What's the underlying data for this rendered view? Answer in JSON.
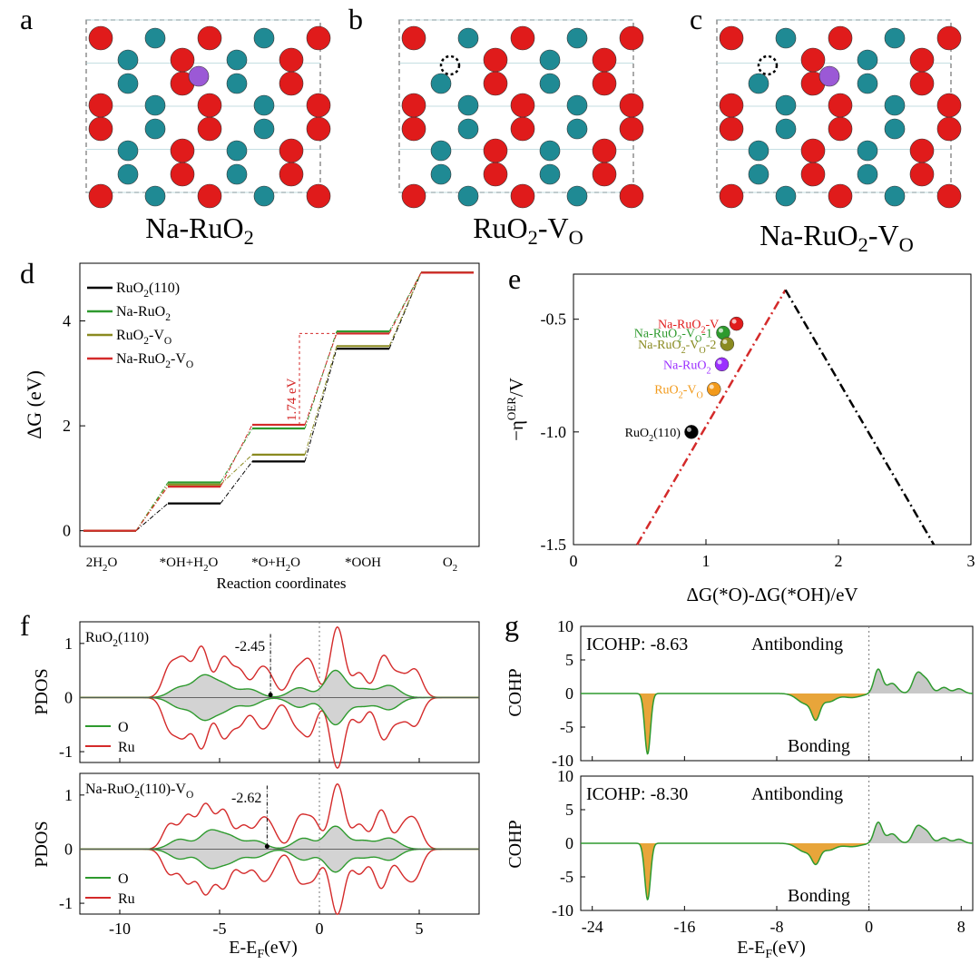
{
  "colors": {
    "ru_atom": "#1f8a94",
    "o_atom": "#e01b1b",
    "na_atom": "#9b59d6",
    "black_series": "#000000",
    "green_series": "#2e9a2e",
    "olive_series": "#8a8a20",
    "red_series": "#d42a2a",
    "orange_point": "#f29a1b",
    "purple_point": "#9b30ff",
    "gray_fill": "#c8c8c8",
    "bonding_fill": "#e8a53a"
  },
  "panel_letters": {
    "a": "a",
    "b": "b",
    "c": "c",
    "d": "d",
    "e": "e",
    "f": "f",
    "g": "g"
  },
  "structures": {
    "a": {
      "name": "Na-RuO",
      "sub": "2",
      "suffix": "",
      "suffix_sub": ""
    },
    "b": {
      "name": "RuO",
      "sub": "2",
      "suffix": "-V",
      "suffix_sub": "O"
    },
    "c": {
      "name": "Na-RuO",
      "sub": "2",
      "suffix": "-V",
      "suffix_sub": "O"
    }
  },
  "chart_data": [
    {
      "panel": "d",
      "type": "line",
      "title": "",
      "xlabel": "Reaction coordinates",
      "ylabel": "ΔG (eV)",
      "ylim": [
        -0.3,
        5.1
      ],
      "yticks": [
        0,
        2,
        4
      ],
      "categories": [
        {
          "label": "2H",
          "sub": "2",
          "tail": "O"
        },
        {
          "label": "*OH+H",
          "sub": "2",
          "tail": "O"
        },
        {
          "label": "*O+H",
          "sub": "2",
          "tail": "O"
        },
        {
          "label": "*OOH",
          "sub": "",
          "tail": ""
        },
        {
          "label": "O",
          "sub": "2",
          "tail": ""
        }
      ],
      "series": [
        {
          "name": "RuO",
          "sub": "2",
          "tail": "(110)",
          "values": [
            0,
            0.52,
            1.32,
            3.47,
            4.92
          ]
        },
        {
          "name": "Na-RuO",
          "sub": "2",
          "tail": "",
          "values": [
            0,
            0.92,
            1.95,
            3.8,
            4.92
          ]
        },
        {
          "name": "RuO",
          "sub": "2",
          "tail": "-V",
          "sub2": "O",
          "values": [
            0,
            0.88,
            1.45,
            3.52,
            4.92
          ]
        },
        {
          "name": "Na-RuO",
          "sub": "2",
          "tail": "-V",
          "sub2": "O",
          "values": [
            0,
            0.84,
            2.02,
            3.76,
            4.92
          ]
        }
      ],
      "annotation": {
        "text": "1.74 eV"
      }
    },
    {
      "panel": "e",
      "type": "scatter",
      "xlabel": "ΔG(*O)-ΔG(*OH)/eV",
      "ylabel": "−η",
      "ylabel_sup": "OER",
      "ylabel_tail": "/V",
      "xlim": [
        0,
        3
      ],
      "ylim": [
        -1.5,
        -0.3
      ],
      "xticks": [
        0,
        1,
        2,
        3
      ],
      "yticks": [
        -1.5,
        -1.0,
        -0.5
      ],
      "volcano_apex": [
        1.6,
        -0.37
      ],
      "points": [
        {
          "label": "Na-RuO",
          "sub": "2",
          "tail": "-V",
          "sub2": "O",
          "tail2": "",
          "x": 1.23,
          "y": -0.52,
          "color": "#e01b1b"
        },
        {
          "label": "Na-RuO",
          "sub": "2",
          "tail": "-V",
          "sub2": "O",
          "tail2": "-1",
          "x": 1.13,
          "y": -0.56,
          "color": "#2e9a2e"
        },
        {
          "label": "Na-RuO",
          "sub": "2",
          "tail": "-V",
          "sub2": "O",
          "tail2": "-2",
          "x": 1.16,
          "y": -0.61,
          "color": "#8a8a20"
        },
        {
          "label": "Na-RuO",
          "sub": "2",
          "tail": "",
          "sub2": "",
          "tail2": "",
          "x": 1.12,
          "y": -0.7,
          "color": "#9b30ff"
        },
        {
          "label": "RuO",
          "sub": "2",
          "tail": "-V",
          "sub2": "O",
          "tail2": "",
          "x": 1.06,
          "y": -0.81,
          "color": "#f29a1b"
        },
        {
          "label": "RuO",
          "sub": "2",
          "tail": "(110)",
          "sub2": "",
          "tail2": "",
          "x": 0.89,
          "y": -1.0,
          "color": "#000000"
        }
      ]
    },
    {
      "panel": "f",
      "type": "line",
      "xlabel": "E-E",
      "xlabel_sub": "F",
      "xlabel_tail": "(eV)",
      "ylabel": "PDOS",
      "xlim": [
        -12,
        8
      ],
      "ylim": [
        -1.2,
        1.4
      ],
      "xticks": [
        -10,
        -5,
        0,
        5
      ],
      "yticks": [
        -1,
        0,
        1
      ],
      "legend": [
        "O",
        "Ru"
      ],
      "plots": [
        {
          "title": "RuO",
          "sub": "2",
          "tail": "(110)",
          "tail_sub": "",
          "dband": "-2.45",
          "dband_x": -2.45,
          "ru_peaks": [
            [
              -7.5,
              0.55
            ],
            [
              -6.8,
              0.65
            ],
            [
              -5.9,
              0.92
            ],
            [
              -4.8,
              0.72
            ],
            [
              -4.0,
              0.48
            ],
            [
              -3.0,
              0.42
            ],
            [
              -2.5,
              0.32
            ],
            [
              -1.2,
              0.45
            ],
            [
              -0.5,
              0.65
            ],
            [
              0.9,
              1.3
            ],
            [
              2.0,
              0.45
            ],
            [
              3.2,
              0.75
            ],
            [
              4.0,
              0.38
            ],
            [
              4.8,
              0.5
            ]
          ],
          "o_peaks": [
            [
              -7.0,
              0.18
            ],
            [
              -5.8,
              0.38
            ],
            [
              -4.8,
              0.22
            ],
            [
              -3.5,
              0.15
            ],
            [
              -1.0,
              0.18
            ],
            [
              0.8,
              0.5
            ],
            [
              2.2,
              0.15
            ],
            [
              3.5,
              0.22
            ]
          ]
        },
        {
          "title": "Na-RuO",
          "sub": "2",
          "tail": "(110)-V",
          "tail_sub": "O",
          "dband": "-2.62",
          "dband_x": -2.62,
          "ru_peaks": [
            [
              -7.5,
              0.45
            ],
            [
              -6.6,
              0.6
            ],
            [
              -5.7,
              0.8
            ],
            [
              -4.8,
              0.7
            ],
            [
              -3.8,
              0.42
            ],
            [
              -2.9,
              0.45
            ],
            [
              -2.4,
              0.3
            ],
            [
              -1.0,
              0.55
            ],
            [
              -0.3,
              0.5
            ],
            [
              0.9,
              1.2
            ],
            [
              2.0,
              0.45
            ],
            [
              3.1,
              0.72
            ],
            [
              4.2,
              0.38
            ],
            [
              4.8,
              0.48
            ]
          ],
          "o_peaks": [
            [
              -7.0,
              0.18
            ],
            [
              -5.5,
              0.32
            ],
            [
              -4.5,
              0.22
            ],
            [
              -3.2,
              0.15
            ],
            [
              -0.8,
              0.2
            ],
            [
              0.8,
              0.42
            ],
            [
              2.2,
              0.15
            ],
            [
              3.5,
              0.2
            ]
          ]
        }
      ]
    },
    {
      "panel": "g",
      "type": "line",
      "xlabel": "E-E",
      "xlabel_sub": "F",
      "xlabel_tail": "(eV)",
      "ylabel": "COHP",
      "xlim": [
        -25,
        9
      ],
      "ylim": [
        -10,
        10
      ],
      "xticks": [
        -24,
        -16,
        -8,
        0,
        8
      ],
      "yticks": [
        -10,
        -5,
        0,
        5,
        10
      ],
      "antibonding_label": "Antibonding",
      "bonding_label": "Bonding",
      "plots": [
        {
          "icohp": "ICOHP: -8.63",
          "deep_peak": -9.0,
          "peaks": [
            [
              -19.2,
              -9.0,
              0.25
            ],
            [
              -5.5,
              -1.5,
              0.7
            ],
            [
              -4.6,
              -3.1,
              0.35
            ],
            [
              -3.5,
              -1.2,
              0.6
            ],
            [
              -1.5,
              -0.6,
              0.8
            ],
            [
              0.8,
              3.6,
              0.35
            ],
            [
              2.0,
              1.5,
              0.45
            ],
            [
              4.2,
              2.9,
              0.4
            ],
            [
              5.0,
              1.8,
              0.4
            ],
            [
              6.5,
              0.9,
              0.4
            ],
            [
              7.8,
              0.7,
              0.4
            ]
          ]
        },
        {
          "icohp": "ICOHP: -8.30",
          "deep_peak": -8.4,
          "peaks": [
            [
              -19.2,
              -8.4,
              0.25
            ],
            [
              -5.5,
              -1.3,
              0.7
            ],
            [
              -4.6,
              -2.4,
              0.35
            ],
            [
              -3.5,
              -1.0,
              0.6
            ],
            [
              -1.5,
              -0.5,
              0.8
            ],
            [
              0.8,
              3.1,
              0.35
            ],
            [
              2.0,
              1.4,
              0.45
            ],
            [
              4.2,
              2.4,
              0.4
            ],
            [
              5.0,
              1.6,
              0.4
            ],
            [
              6.5,
              0.8,
              0.4
            ],
            [
              7.8,
              0.6,
              0.4
            ]
          ]
        }
      ]
    }
  ]
}
